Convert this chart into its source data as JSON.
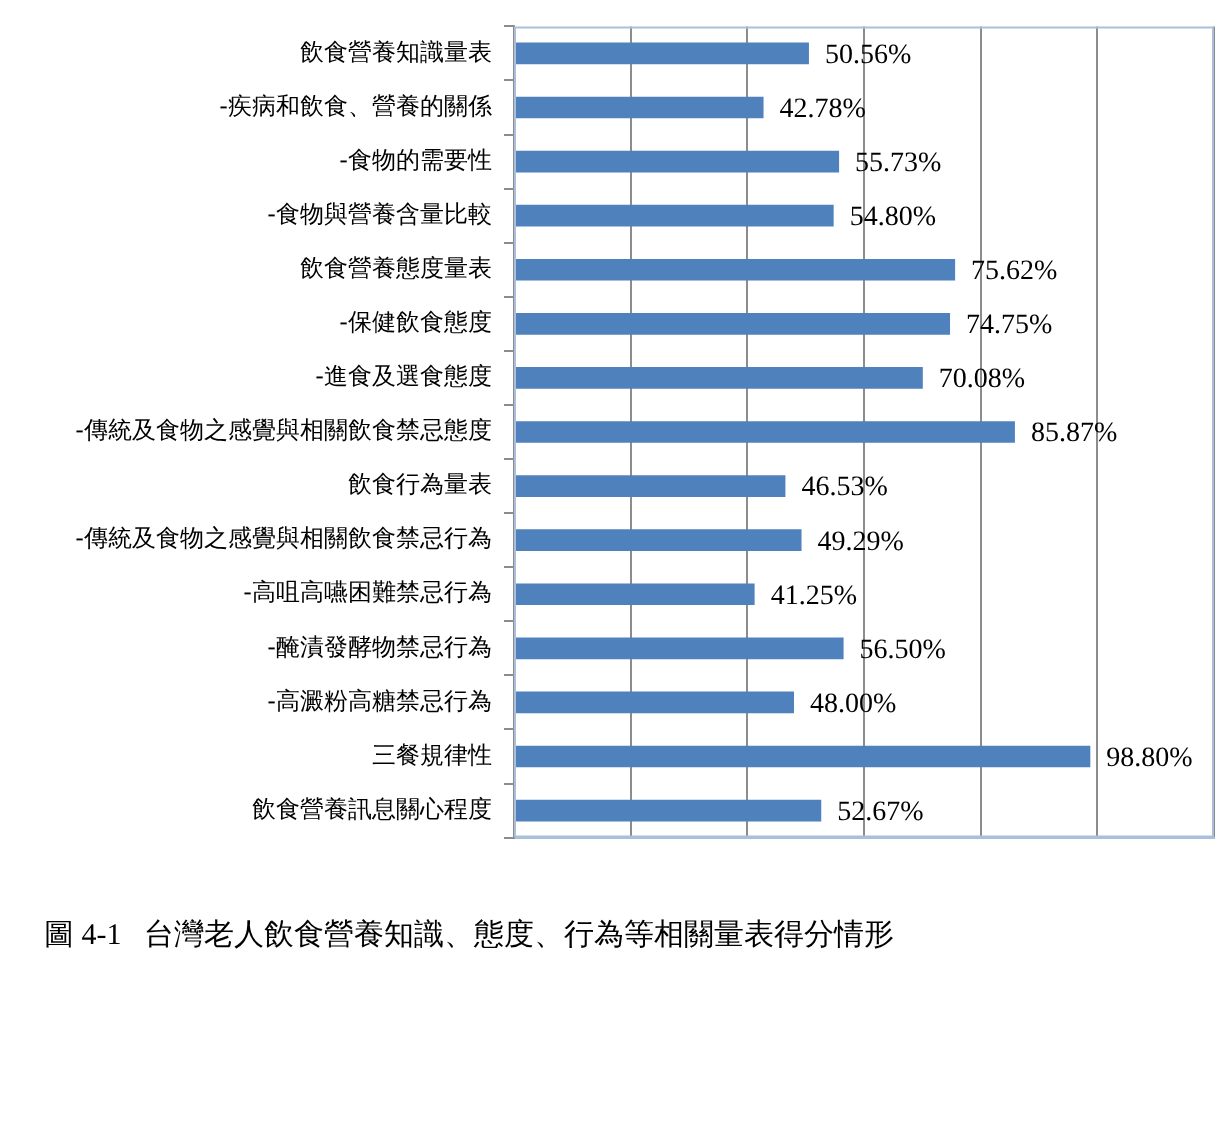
{
  "chart_data": {
    "type": "bar",
    "orientation": "horizontal",
    "title": "圖 4-1   台灣老人飲食營養知識、態度、行為等相關量表得分情形",
    "categories": [
      "飲食營養知識量表",
      "-疾病和飲食、營養的關係",
      "-食物的需要性",
      "-食物與營養含量比較",
      "飲食營養態度量表",
      "-保健飲食態度",
      "-進食及選食態度",
      "-傳統及食物之感覺與相關飲食禁忌態度",
      "飲食行為量表",
      "-傳統及食物之感覺與相關飲食禁忌行為",
      "-高咀高嚥困難禁忌行為",
      "-醃漬發酵物禁忌行為",
      "-高澱粉高糖禁忌行為",
      "三餐規律性",
      "飲食營養訊息關心程度"
    ],
    "values": [
      50.56,
      42.78,
      55.73,
      54.8,
      75.62,
      74.75,
      70.08,
      85.87,
      46.53,
      49.29,
      41.25,
      56.5,
      48.0,
      98.8,
      52.67
    ],
    "value_labels": [
      "50.56%",
      "42.78%",
      "55.73%",
      "54.80%",
      "75.62%",
      "74.75%",
      "70.08%",
      "85.87%",
      "46.53%",
      "49.29%",
      "41.25%",
      "56.50%",
      "48.00%",
      "98.80%",
      "52.67%"
    ],
    "color": "#4f81bd",
    "xlim": [
      0,
      120
    ],
    "xticks": [
      {
        "value": 0,
        "label": null
      },
      {
        "value": 20,
        "label": null
      },
      {
        "value": 40,
        "label": null
      },
      {
        "value": 60,
        "label": null
      },
      {
        "value": 80,
        "label": null
      },
      {
        "value": 100,
        "label": null
      },
      {
        "value": 120,
        "label": null
      }
    ],
    "grid": "x",
    "tick_labels": "y"
  }
}
